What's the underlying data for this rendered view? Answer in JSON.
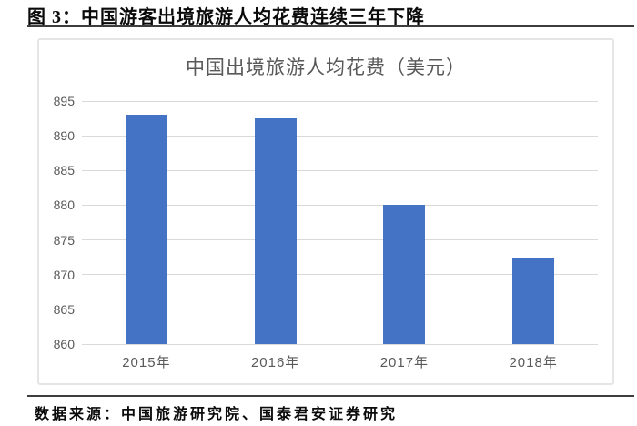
{
  "header": {
    "figure_label": "图 3：中国游客出境旅游人均花费连续三年下降"
  },
  "footer": {
    "source_label": "数据来源：中国旅游研究院、国泰君安证券研究"
  },
  "chart_data": {
    "type": "bar",
    "title": "中国出境旅游人均花费（美元）",
    "categories": [
      "2015年",
      "2016年",
      "2017年",
      "2018年"
    ],
    "values": [
      893,
      892.5,
      880,
      872.5
    ],
    "xlabel": "",
    "ylabel": "",
    "ylim": [
      860,
      895
    ],
    "ytick_step": 5,
    "yticks": [
      860,
      865,
      870,
      875,
      880,
      885,
      890,
      895
    ],
    "grid": true,
    "legend": false,
    "colors": {
      "bar": "#4472C4",
      "gridline": "#D9D9D9",
      "axis_text": "#595959",
      "chart_title": "#595959",
      "rule": "#3D3D3D",
      "chart_border": "#E5E5E5"
    }
  }
}
